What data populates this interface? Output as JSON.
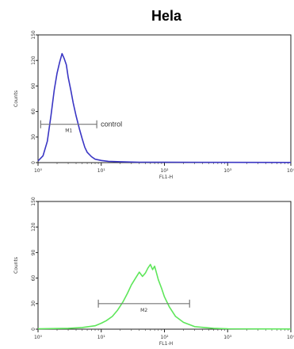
{
  "chart_data": [
    {
      "type": "line",
      "title": "Hela",
      "xlabel": "FL1-H",
      "ylabel": "Counts",
      "x_scale": "log",
      "xlim": [
        1,
        10000
      ],
      "ylim": [
        0,
        150
      ],
      "x_ticks": [
        1,
        10,
        100,
        1000,
        10000
      ],
      "x_tick_labels": [
        "10⁰",
        "10¹",
        "10²",
        "10³",
        "10⁴"
      ],
      "y_ticks": [
        0,
        30,
        60,
        90,
        120,
        150
      ],
      "y_tick_labels": [
        "0",
        "30",
        "60",
        "90",
        "120",
        "150"
      ],
      "grid": false,
      "series": [
        {
          "name": "control",
          "color": "#3a36c4",
          "x": [
            1,
            1.2,
            1.4,
            1.6,
            1.8,
            2.0,
            2.2,
            2.4,
            2.6,
            2.8,
            3.0,
            3.3,
            3.6,
            4.0,
            4.5,
            5.0,
            5.5,
            6.0,
            7.0,
            8.0,
            10,
            13,
            20,
            40,
            100,
            1000,
            10000
          ],
          "y": [
            2,
            8,
            25,
            55,
            85,
            105,
            118,
            128,
            122,
            115,
            100,
            85,
            70,
            55,
            40,
            28,
            18,
            12,
            7,
            4,
            2.5,
            1.5,
            1,
            0.5,
            0.5,
            0.3,
            0.2
          ]
        }
      ],
      "gate": {
        "name": "M1",
        "x_start": 1.1,
        "x_end": 8.5,
        "y": 45
      },
      "legend_text": "control"
    },
    {
      "type": "line",
      "title": "",
      "xlabel": "FL1-H",
      "ylabel": "Counts",
      "x_scale": "log",
      "xlim": [
        1,
        10000
      ],
      "ylim": [
        0,
        150
      ],
      "x_ticks": [
        1,
        10,
        100,
        1000,
        10000
      ],
      "x_tick_labels": [
        "10⁰",
        "10¹",
        "10²",
        "10³",
        "10⁴"
      ],
      "y_ticks": [
        0,
        30,
        60,
        90,
        120,
        150
      ],
      "y_tick_labels": [
        "0",
        "30",
        "60",
        "90",
        "120",
        "150"
      ],
      "grid": false,
      "series": [
        {
          "name": "",
          "color": "#5ee65a",
          "x": [
            1,
            3,
            5,
            8,
            10,
            12,
            15,
            18,
            22,
            26,
            30,
            35,
            40,
            45,
            50,
            55,
            60,
            65,
            70,
            75,
            80,
            90,
            100,
            120,
            150,
            200,
            300,
            600,
            1000,
            10000
          ],
          "y": [
            0.5,
            1,
            2,
            4,
            7,
            10,
            15,
            22,
            32,
            42,
            52,
            60,
            67,
            62,
            66,
            72,
            76,
            70,
            74,
            66,
            58,
            48,
            38,
            26,
            15,
            8,
            3,
            1,
            0.5,
            0.2
          ]
        }
      ],
      "gate": {
        "name": "M2",
        "x_start": 9,
        "x_end": 250,
        "y": 30
      }
    }
  ]
}
